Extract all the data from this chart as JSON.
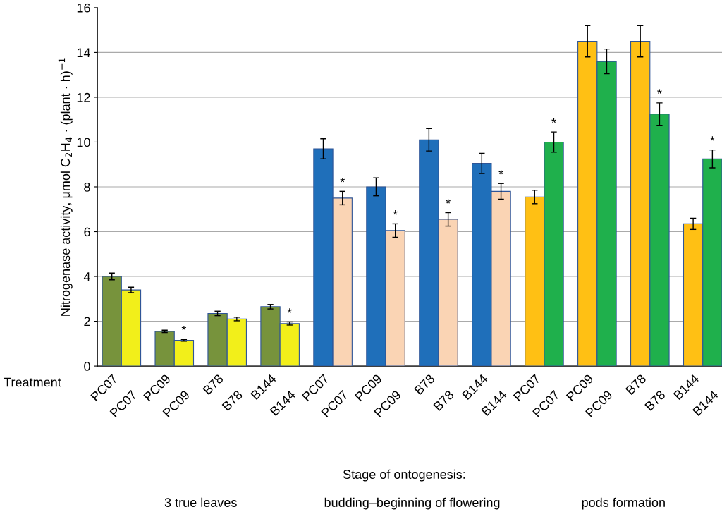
{
  "chart_data": {
    "type": "bar",
    "ylabel": "Nitrogenase activity, μmol C$_{2}$H$_{4}$ · (plant · h)$^{−1}$",
    "categories": [
      "PC07",
      "PC07",
      "PC09",
      "PC09",
      "B78",
      "B78",
      "B144",
      "B144",
      "PC07",
      "PC07",
      "PC09",
      "PC09",
      "B78",
      "B78",
      "B144",
      "B144",
      "PC07",
      "PC07",
      "PC09",
      "PC09",
      "B78",
      "B78",
      "B144",
      "B144"
    ],
    "values": [
      4.0,
      3.4,
      1.55,
      1.15,
      2.35,
      2.1,
      2.65,
      1.9,
      9.7,
      7.5,
      8.0,
      6.05,
      10.1,
      6.55,
      9.05,
      7.8,
      7.55,
      10.0,
      14.5,
      13.6,
      14.5,
      11.25,
      6.35,
      9.25
    ],
    "errors": [
      0.15,
      0.12,
      0.05,
      0.04,
      0.1,
      0.08,
      0.1,
      0.07,
      0.45,
      0.3,
      0.4,
      0.3,
      0.5,
      0.3,
      0.45,
      0.35,
      0.3,
      0.45,
      0.7,
      0.55,
      0.7,
      0.5,
      0.25,
      0.4
    ],
    "colors": [
      "#77933c",
      "#f2ef1a",
      "#77933c",
      "#f2ef1a",
      "#77933c",
      "#f2ef1a",
      "#77933c",
      "#f2ef1a",
      "#1f6fba",
      "#fad4b4",
      "#1f6fba",
      "#fad4b4",
      "#1f6fba",
      "#fad4b4",
      "#1f6fba",
      "#fad4b4",
      "#ffc014",
      "#1fb04c",
      "#ffc014",
      "#1fb04c",
      "#ffc014",
      "#1fb04c",
      "#ffc014",
      "#1fb04c"
    ],
    "value_labels": [
      null,
      null,
      null,
      "*",
      null,
      null,
      null,
      "*",
      null,
      "*",
      null,
      "*",
      null,
      "*",
      null,
      "*",
      null,
      "*",
      null,
      null,
      null,
      "*",
      null,
      "*"
    ],
    "ylim": [
      0,
      16
    ],
    "yticks": [
      0,
      2,
      4,
      6,
      8,
      10,
      12,
      14,
      16
    ],
    "grid": "y",
    "annotations": [
      "Treatment",
      "Stage of ontogenesis:",
      "3 true leaves",
      "budding–beginning of flowering",
      "pods formation"
    ]
  }
}
